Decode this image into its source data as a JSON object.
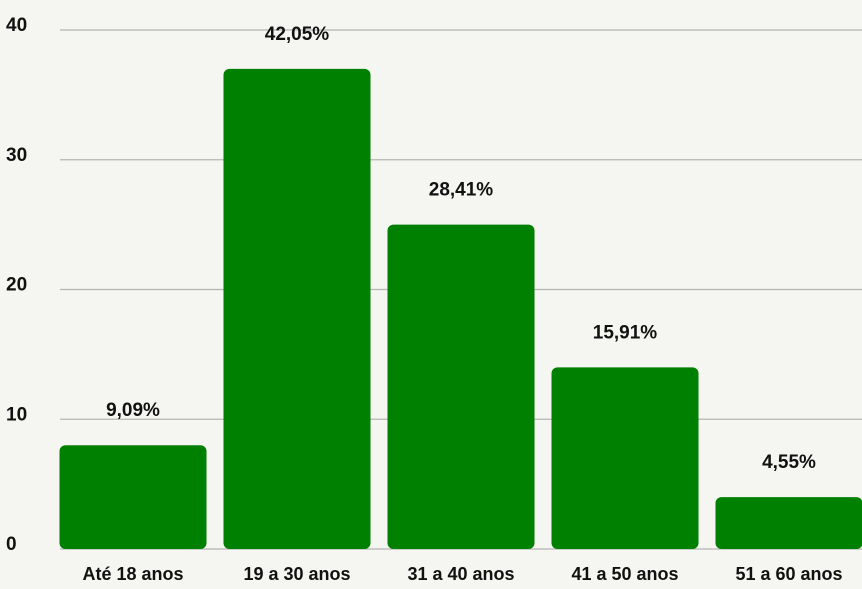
{
  "chart_data": {
    "type": "bar",
    "categories": [
      "Até 18 anos",
      "19 a 30 anos",
      "31 a 40 anos",
      "41 a 50 anos",
      "51 a 60 anos"
    ],
    "values": [
      8,
      37,
      25,
      14,
      4
    ],
    "annotations": [
      "9,09%",
      "42,05%",
      "28,41%",
      "15,91%",
      "4,55%"
    ],
    "color": "#008000",
    "ylim": [
      0,
      40
    ],
    "yticks": [
      0,
      10,
      20,
      30,
      40
    ],
    "grid": true
  }
}
